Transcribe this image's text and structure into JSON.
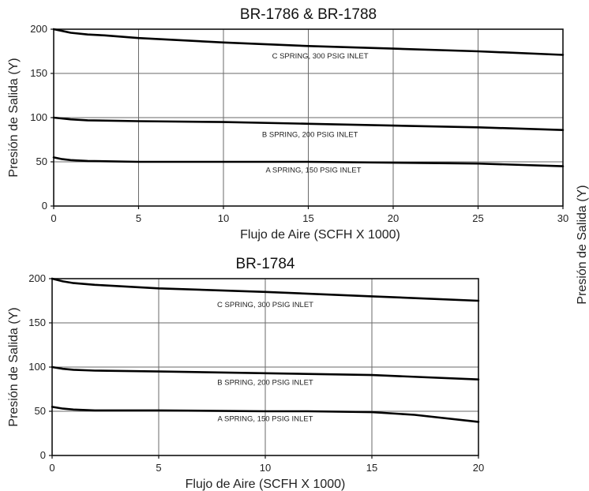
{
  "chart_data": [
    {
      "type": "line",
      "title": "BR-1786 & BR-1788",
      "xlabel": "Flujo de Aire (SCFH X 1000)",
      "ylabel": "Presión de Salida (Y)",
      "xlim": [
        0,
        30
      ],
      "ylim": [
        0,
        200
      ],
      "x_ticks": [
        "0",
        "5",
        "10",
        "15",
        "20",
        "25",
        "30"
      ],
      "y_ticks": [
        "0",
        "50",
        "100",
        "150",
        "200"
      ],
      "grid": true,
      "series": [
        {
          "x": [
            0,
            0.5,
            1,
            2,
            3,
            5,
            10,
            15,
            20,
            25,
            30
          ],
          "y": [
            200,
            198,
            196,
            194,
            193,
            190,
            185,
            181,
            178,
            175,
            171
          ]
        },
        {
          "x": [
            0,
            1,
            2,
            5,
            10,
            15,
            20,
            25,
            30
          ],
          "y": [
            100,
            98,
            97,
            96,
            95,
            93,
            91,
            89,
            86
          ]
        },
        {
          "x": [
            0,
            0.5,
            1,
            2,
            5,
            10,
            15,
            20,
            25,
            30
          ],
          "y": [
            55,
            53,
            52,
            51,
            50,
            50,
            50,
            49,
            48,
            45
          ]
        }
      ],
      "annotations": [
        {
          "text": "C SPRING, 300 PSIG INLET",
          "x": 15.7,
          "y": 167
        },
        {
          "text": "B SPRING, 200 PSIG INLET",
          "x": 15.1,
          "y": 78
        },
        {
          "text": "A SPRING, 150 PSIG INLET",
          "x": 15.3,
          "y": 38
        }
      ]
    },
    {
      "type": "line",
      "title": "BR-1784",
      "xlabel": "Flujo de Aire (SCFH X 1000)",
      "ylabel": "Presión de Salida (Y)",
      "xlim": [
        0,
        20
      ],
      "ylim": [
        0,
        200
      ],
      "x_ticks": [
        "0",
        "5",
        "10",
        "15",
        "20"
      ],
      "y_ticks": [
        "0",
        "50",
        "100",
        "150",
        "200"
      ],
      "grid": true,
      "series": [
        {
          "x": [
            0,
            0.5,
            1,
            2,
            5,
            10,
            15,
            20
          ],
          "y": [
            200,
            197,
            195,
            193,
            189,
            185,
            180,
            175
          ]
        },
        {
          "x": [
            0,
            0.5,
            1,
            2,
            5,
            10,
            15,
            20
          ],
          "y": [
            100,
            98,
            97,
            96,
            95,
            93,
            91,
            86
          ]
        },
        {
          "x": [
            0,
            0.5,
            1,
            2,
            5,
            10,
            12,
            15,
            17,
            20
          ],
          "y": [
            55,
            53,
            52,
            51,
            51,
            50,
            50,
            49,
            46,
            38
          ]
        }
      ],
      "annotations": [
        {
          "text": "C SPRING, 300 PSIG INLET",
          "x": 10,
          "y": 168
        },
        {
          "text": "B SPRING, 200 PSIG INLET",
          "x": 10,
          "y": 80
        },
        {
          "text": "A SPRING, 150 PSIG INLET",
          "x": 10,
          "y": 39
        }
      ]
    }
  ],
  "side_ylabel": "Presión de Salida (Y)"
}
